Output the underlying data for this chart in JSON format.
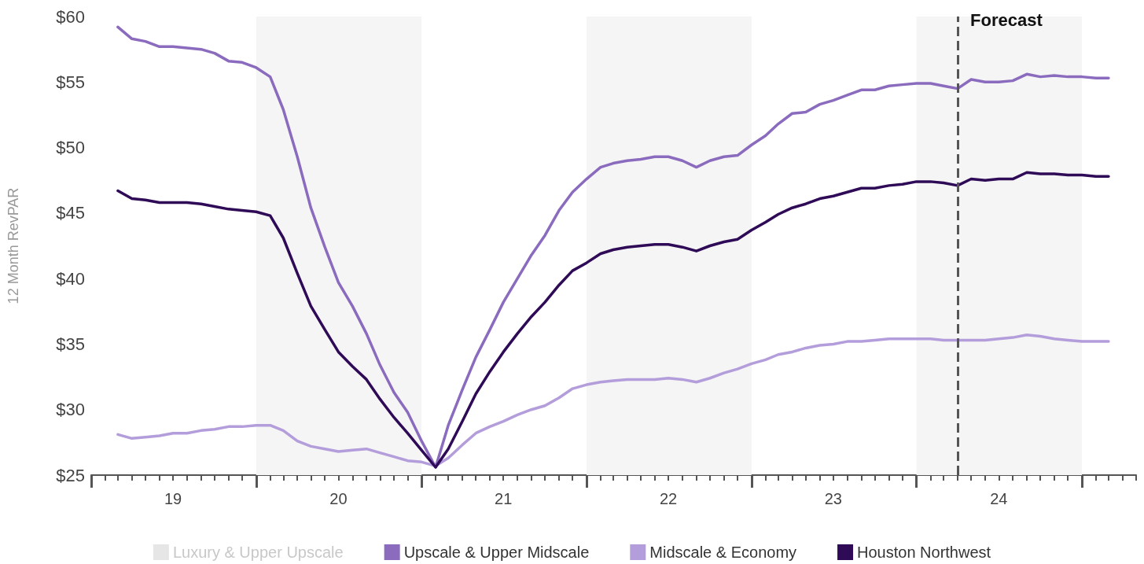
{
  "chart_data": {
    "type": "line",
    "ylabel": "12 Month RevPAR",
    "x": [
      "2019-03",
      "2019-04",
      "2019-05",
      "2019-06",
      "2019-07",
      "2019-08",
      "2019-09",
      "2019-10",
      "2019-11",
      "2019-12",
      "2020-01",
      "2020-02",
      "2020-03",
      "2020-04",
      "2020-05",
      "2020-06",
      "2020-07",
      "2020-08",
      "2020-09",
      "2020-10",
      "2020-11",
      "2020-12",
      "2021-01",
      "2021-02",
      "2021-03",
      "2021-04",
      "2021-05",
      "2021-06",
      "2021-07",
      "2021-08",
      "2021-09",
      "2021-10",
      "2021-11",
      "2021-12",
      "2022-01",
      "2022-02",
      "2022-03",
      "2022-04",
      "2022-05",
      "2022-06",
      "2022-07",
      "2022-08",
      "2022-09",
      "2022-10",
      "2022-11",
      "2022-12",
      "2023-01",
      "2023-02",
      "2023-03",
      "2023-04",
      "2023-05",
      "2023-06",
      "2023-07",
      "2023-08",
      "2023-09",
      "2023-10",
      "2023-11",
      "2023-12",
      "2024-01",
      "2024-02",
      "2024-03",
      "2024-04",
      "2024-05",
      "2024-06",
      "2024-07",
      "2024-08",
      "2024-09",
      "2024-10",
      "2024-11",
      "2024-12",
      "2025-01",
      "2025-02",
      "2025-03"
    ],
    "series": [
      {
        "name": "Luxury & Upper Upscale",
        "color": "#e6e6e6",
        "values": [
          null,
          null,
          null,
          null,
          null,
          null,
          null,
          null,
          null,
          null,
          null,
          null,
          null,
          null,
          null,
          null,
          null,
          null,
          null,
          null,
          null,
          null,
          null,
          null,
          null,
          null,
          null,
          null,
          null,
          null,
          null,
          null,
          null,
          null,
          null,
          null,
          null,
          null,
          null,
          null,
          null,
          null,
          null,
          null,
          null,
          null,
          null,
          null,
          null,
          null,
          null,
          null,
          null,
          null,
          null,
          null,
          null,
          null,
          null,
          null,
          null,
          null,
          null,
          null,
          null,
          null,
          null,
          null,
          null,
          null,
          null,
          null,
          null
        ]
      },
      {
        "name": "Upscale & Upper Midscale",
        "color": "#8a6bbe",
        "values": [
          59.2,
          58.3,
          58.1,
          57.7,
          57.7,
          57.6,
          57.5,
          57.2,
          56.6,
          56.5,
          56.1,
          55.4,
          52.9,
          49.3,
          45.4,
          42.4,
          39.7,
          37.9,
          35.8,
          33.4,
          31.3,
          29.8,
          27.6,
          25.6,
          28.8,
          31.5,
          34.0,
          36.1,
          38.2,
          40.0,
          41.8,
          43.3,
          45.2,
          46.6,
          47.6,
          48.5,
          48.8,
          49.0,
          49.1,
          49.3,
          49.3,
          49.0,
          48.5,
          49.0,
          49.3,
          49.4,
          50.2,
          50.9,
          51.8,
          52.6,
          52.7,
          53.3,
          53.6,
          54.0,
          54.4,
          54.4,
          54.7,
          54.8,
          54.9,
          54.9,
          54.7,
          54.5,
          55.2,
          55.0,
          55.0,
          55.1,
          55.6,
          55.4,
          55.5,
          55.4,
          55.4,
          55.3,
          55.3
        ]
      },
      {
        "name": "Midscale & Economy",
        "color": "#b39ddb",
        "values": [
          28.1,
          27.8,
          27.9,
          28.0,
          28.2,
          28.2,
          28.4,
          28.5,
          28.7,
          28.7,
          28.8,
          28.8,
          28.4,
          27.6,
          27.2,
          27.0,
          26.8,
          26.9,
          27.0,
          26.7,
          26.4,
          26.1,
          26.0,
          25.7,
          26.3,
          27.3,
          28.2,
          28.7,
          29.1,
          29.6,
          30.0,
          30.3,
          30.9,
          31.6,
          31.9,
          32.1,
          32.2,
          32.3,
          32.3,
          32.3,
          32.4,
          32.3,
          32.1,
          32.4,
          32.8,
          33.1,
          33.5,
          33.8,
          34.2,
          34.4,
          34.7,
          34.9,
          35.0,
          35.2,
          35.2,
          35.3,
          35.4,
          35.4,
          35.4,
          35.4,
          35.3,
          35.3,
          35.3,
          35.3,
          35.4,
          35.5,
          35.7,
          35.6,
          35.4,
          35.3,
          35.2,
          35.2,
          35.2
        ]
      },
      {
        "name": "Houston Northwest",
        "color": "#2e0a57",
        "values": [
          46.7,
          46.1,
          46.0,
          45.8,
          45.8,
          45.8,
          45.7,
          45.5,
          45.3,
          45.2,
          45.1,
          44.8,
          43.1,
          40.4,
          37.9,
          36.1,
          34.4,
          33.3,
          32.3,
          30.8,
          29.4,
          28.2,
          26.9,
          25.6,
          27.0,
          29.1,
          31.2,
          32.9,
          34.4,
          35.8,
          37.1,
          38.2,
          39.5,
          40.6,
          41.2,
          41.9,
          42.2,
          42.4,
          42.5,
          42.6,
          42.6,
          42.4,
          42.1,
          42.5,
          42.8,
          43.0,
          43.7,
          44.3,
          44.9,
          45.4,
          45.7,
          46.1,
          46.3,
          46.6,
          46.9,
          46.9,
          47.1,
          47.2,
          47.4,
          47.4,
          47.3,
          47.1,
          47.6,
          47.5,
          47.6,
          47.6,
          48.1,
          48.0,
          48.0,
          47.9,
          47.9,
          47.8,
          47.8
        ]
      }
    ],
    "xlim": [
      "2019-01",
      "2025-05"
    ],
    "xticks": [
      {
        "value": "2019-01",
        "label": null
      },
      {
        "value": "2019-07",
        "label": "19"
      },
      {
        "value": "2020-01",
        "label": null
      },
      {
        "value": "2020-07",
        "label": "20"
      },
      {
        "value": "2021-01",
        "label": null
      },
      {
        "value": "2021-07",
        "label": "21"
      },
      {
        "value": "2022-01",
        "label": null
      },
      {
        "value": "2022-07",
        "label": "22"
      },
      {
        "value": "2023-01",
        "label": null
      },
      {
        "value": "2023-07",
        "label": "23"
      },
      {
        "value": "2024-01",
        "label": null
      },
      {
        "value": "2024-07",
        "label": "24"
      },
      {
        "value": "2025-01",
        "label": null
      }
    ],
    "ylim": [
      25,
      60
    ],
    "yticks": [
      {
        "value": 25,
        "label": "$25"
      },
      {
        "value": 30,
        "label": "$30"
      },
      {
        "value": 35,
        "label": "$35"
      },
      {
        "value": 40,
        "label": "$40"
      },
      {
        "value": 45,
        "label": "$45"
      },
      {
        "value": 50,
        "label": "$50"
      },
      {
        "value": 55,
        "label": "$55"
      },
      {
        "value": 60,
        "label": "$60"
      }
    ],
    "bands": [
      {
        "axis": "x",
        "from": "2020-01",
        "to": "2021-01",
        "color": "#f5f5f5"
      },
      {
        "axis": "x",
        "from": "2022-01",
        "to": "2023-01",
        "color": "#f5f5f5"
      },
      {
        "axis": "x",
        "from": "2024-01",
        "to": "2025-01",
        "color": "#f5f5f5"
      }
    ],
    "ref_lines": [
      {
        "axis": "x",
        "value": "2024-04",
        "label": "Forecast",
        "color": "#555555",
        "line_style": "dashed"
      }
    ],
    "legend": "bottom",
    "marker": "none",
    "line_style": "solid"
  }
}
